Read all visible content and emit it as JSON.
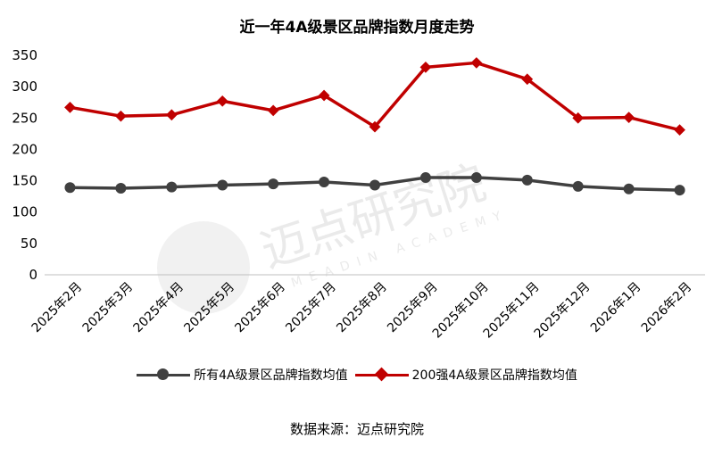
{
  "chart_data": {
    "type": "line",
    "title": "近一年4A级景区品牌指数月度走势",
    "categories": [
      "2025年2月",
      "2025年3月",
      "2025年4月",
      "2025年5月",
      "2025年6月",
      "2025年7月",
      "2025年8月",
      "2025年9月",
      "2025年10月",
      "2025年11月",
      "2025年12月",
      "2026年1月",
      "2026年2月"
    ],
    "series": [
      {
        "name": "所有4A级景区品牌指数均值",
        "color": "#404040",
        "marker": "circle",
        "values": [
          139,
          138,
          140,
          143,
          145,
          148,
          143,
          155,
          155,
          151,
          141,
          137,
          135
        ]
      },
      {
        "name": "200强4A级景区品牌指数均值",
        "color": "#c00000",
        "marker": "diamond",
        "values": [
          267,
          253,
          255,
          277,
          262,
          286,
          236,
          331,
          338,
          312,
          250,
          251,
          231
        ]
      }
    ],
    "ylim": [
      0,
      350
    ],
    "yticks": [
      0,
      50,
      100,
      150,
      200,
      250,
      300,
      350
    ],
    "grid": false,
    "legend_position": "bottom"
  },
  "watermark": {
    "cn": "迈点研究院",
    "en": "MEADIN ACADEMY"
  },
  "source": "数据来源：迈点研究院"
}
